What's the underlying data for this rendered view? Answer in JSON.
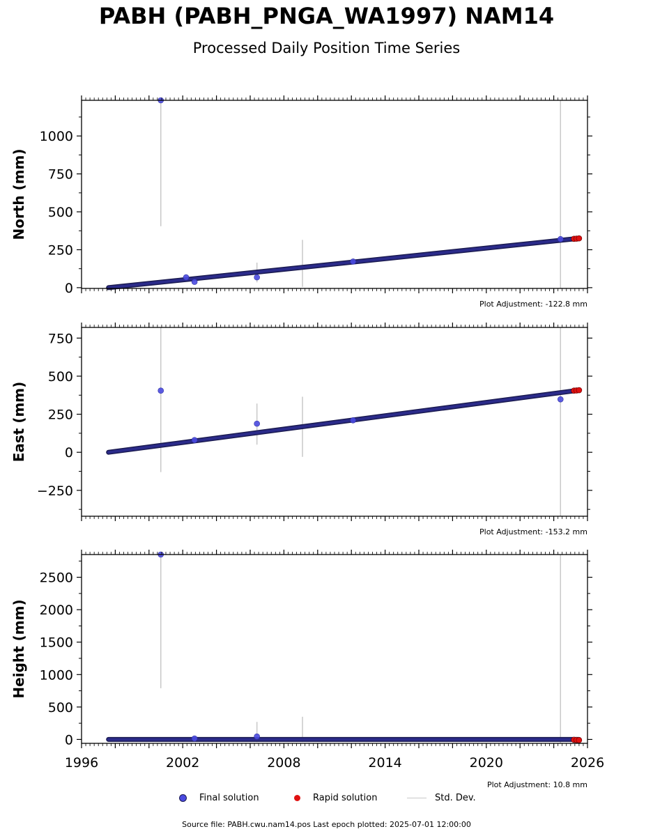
{
  "title": "PABH (PABH_PNGA_WA1997) NAM14",
  "subtitle": "Processed Daily Position Time Series",
  "legend": {
    "final": "Final solution",
    "rapid": "Rapid solution",
    "stddev": "Std. Dev."
  },
  "colors": {
    "final": "#4a4ae0",
    "final_edge": "#1a1a50",
    "rapid": "#e01010",
    "stddev": "#c8c8c8"
  },
  "source": "Source file: PABH.cwu.nam14.pos  Last epoch plotted: 2025-07-01 12:00:00",
  "chart_data": [
    {
      "type": "scatter",
      "ylabel": "North (mm)",
      "adjustment": "Plot Adjustment: -122.8 mm",
      "xlim": [
        1996,
        2026
      ],
      "ylim": [
        -5,
        1235
      ],
      "yticks": [
        0,
        250,
        500,
        750,
        1000
      ],
      "trend": [
        [
          1997.6,
          0
        ],
        [
          2025.5,
          325
        ]
      ],
      "final_points": [
        [
          2000.7,
          1235
        ],
        [
          2002.2,
          68
        ],
        [
          2002.7,
          38
        ],
        [
          2006.4,
          68
        ],
        [
          2012.1,
          172
        ],
        [
          2024.4,
          320
        ]
      ],
      "rapid_points": [
        [
          2025.2,
          322
        ],
        [
          2025.35,
          323
        ],
        [
          2025.5,
          325
        ]
      ],
      "errorbars": [
        [
          2000.7,
          405,
          1235
        ],
        [
          2006.4,
          35,
          165
        ],
        [
          2009.1,
          5,
          315
        ],
        [
          2024.4,
          -5,
          1235
        ]
      ]
    },
    {
      "type": "scatter",
      "ylabel": "East (mm)",
      "adjustment": "Plot Adjustment: -153.2 mm",
      "xlim": [
        1996,
        2026
      ],
      "ylim": [
        -420,
        820
      ],
      "yticks": [
        -250,
        0,
        250,
        500,
        750
      ],
      "trend": [
        [
          1997.6,
          0
        ],
        [
          2025.5,
          408
        ]
      ],
      "final_points": [
        [
          2000.7,
          405
        ],
        [
          2002.7,
          80
        ],
        [
          2006.4,
          188
        ],
        [
          2012.1,
          210
        ],
        [
          2024.4,
          348
        ]
      ],
      "rapid_points": [
        [
          2025.2,
          405
        ],
        [
          2025.35,
          406
        ],
        [
          2025.5,
          408
        ]
      ],
      "errorbars": [
        [
          2000.7,
          -130,
          820
        ],
        [
          2006.4,
          50,
          320
        ],
        [
          2009.1,
          -30,
          365
        ],
        [
          2024.4,
          -420,
          820
        ]
      ]
    },
    {
      "type": "scatter",
      "ylabel": "Height (mm)",
      "adjustment": "Plot Adjustment: 10.8 mm",
      "xlim": [
        1996,
        2026
      ],
      "ylim": [
        -60,
        2850
      ],
      "yticks": [
        0,
        500,
        1000,
        1500,
        2000,
        2500
      ],
      "xticks": [
        "1996",
        "2002",
        "2008",
        "2014",
        "2020",
        "2026"
      ],
      "trend": [
        [
          1997.6,
          0
        ],
        [
          2025.5,
          0
        ]
      ],
      "final_points": [
        [
          2000.7,
          2850
        ],
        [
          2006.4,
          45
        ],
        [
          2002.7,
          15
        ]
      ],
      "rapid_points": [
        [
          2025.2,
          -5
        ],
        [
          2025.35,
          -8
        ],
        [
          2025.5,
          -10
        ]
      ],
      "errorbars": [
        [
          2000.7,
          790,
          2850
        ],
        [
          2006.4,
          -40,
          270
        ],
        [
          2009.1,
          -40,
          350
        ],
        [
          2024.4,
          -60,
          2850
        ]
      ]
    }
  ]
}
